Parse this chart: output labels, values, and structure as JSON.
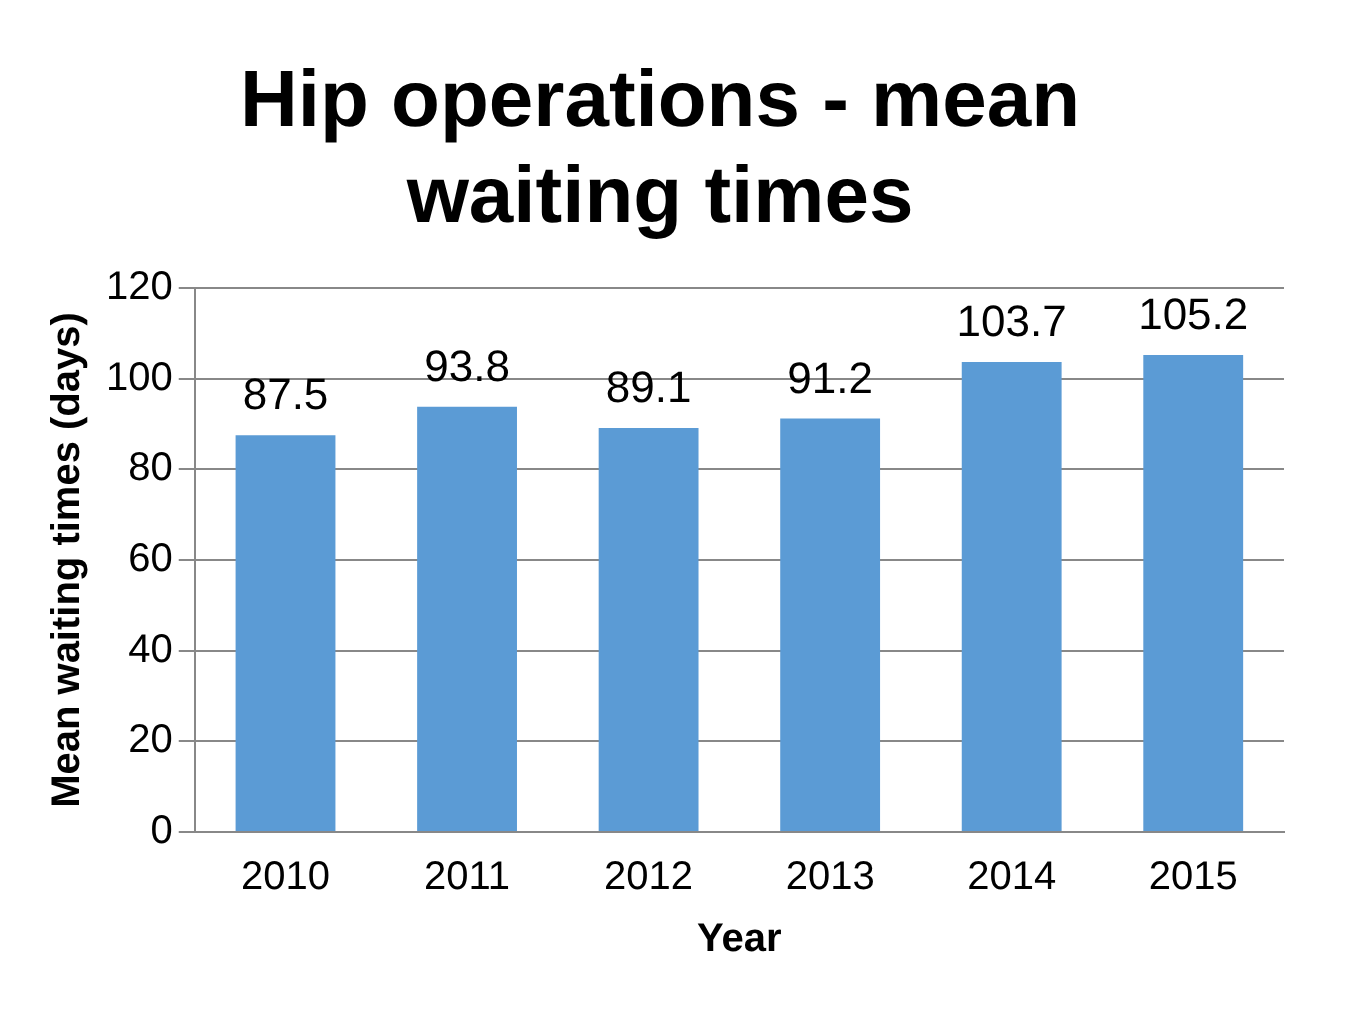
{
  "chart_data": {
    "type": "bar",
    "title": "Hip operations - mean waiting times",
    "xlabel": "Year",
    "ylabel": "Mean waiting times (days)",
    "categories": [
      "2010",
      "2011",
      "2012",
      "2013",
      "2014",
      "2015"
    ],
    "values": [
      87.5,
      93.8,
      89.1,
      91.2,
      103.7,
      105.2
    ],
    "color": "#5b9bd5",
    "ylim": [
      0,
      120
    ],
    "yticks": [
      0,
      20,
      40,
      60,
      80,
      100,
      120
    ],
    "grid": "y",
    "data_labels": true,
    "legend": false
  }
}
